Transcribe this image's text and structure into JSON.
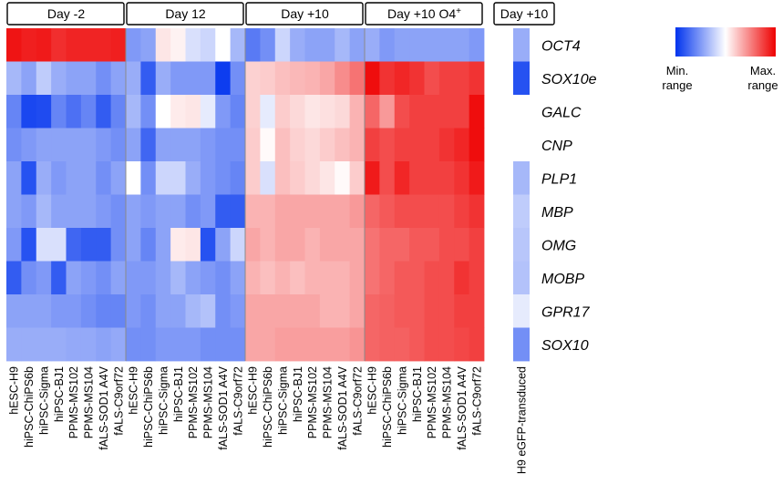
{
  "chart_data": {
    "type": "heatmap",
    "groups": [
      {
        "label": "Day -2",
        "sup": ""
      },
      {
        "label": "Day 12",
        "sup": ""
      },
      {
        "label": "Day +10",
        "sup": ""
      },
      {
        "label": "Day +10 O4",
        "sup": "+"
      }
    ],
    "side_group": {
      "label": "Day +10"
    },
    "columns": [
      "hESC-H9",
      "hiPSC-ChiPS6b",
      "hiPSC-Sigma",
      "hiPSC-BJ1",
      "PPMS-MS102",
      "PPMS-MS104",
      "fALS-SOD1 A4V",
      "fALS-C9orf72"
    ],
    "side_column": "H9 eGFP-transduced",
    "genes": [
      "OCT4",
      "SOX10e",
      "GALC",
      "CNP",
      "PLP1",
      "MBP",
      "OMG",
      "MOBP",
      "GPR17",
      "SOX10"
    ],
    "scale": {
      "min": -1,
      "max": 1,
      "min_label": "Min. range",
      "max_label": "Max. range",
      "colors": [
        "#0033ee",
        "#ffffff",
        "#ee0000"
      ]
    },
    "values": [
      [
        [
          0.92,
          0.88,
          0.9,
          0.82,
          0.86,
          0.86,
          0.86,
          0.88
        ],
        [
          -0.5,
          -0.45,
          0.1,
          0.05,
          -0.15,
          -0.2,
          0.0,
          -0.35
        ],
        [
          -0.65,
          -0.55,
          -0.2,
          -0.4,
          -0.45,
          -0.45,
          -0.35,
          -0.45
        ],
        [
          -0.4,
          -0.5,
          -0.45,
          -0.45,
          -0.45,
          -0.45,
          -0.45,
          -0.5
        ]
      ],
      [
        [
          -0.35,
          -0.45,
          -0.25,
          -0.4,
          -0.45,
          -0.45,
          -0.55,
          -0.45
        ],
        [
          -0.4,
          -0.8,
          -0.4,
          -0.5,
          -0.5,
          -0.5,
          -0.95,
          -0.55
        ],
        [
          0.18,
          0.2,
          0.25,
          0.28,
          0.3,
          0.35,
          0.45,
          0.55
        ],
        [
          0.95,
          0.8,
          0.85,
          0.8,
          0.7,
          0.75,
          0.75,
          0.8
        ]
      ],
      [
        [
          -0.6,
          -0.9,
          -0.88,
          -0.6,
          -0.7,
          -0.6,
          -0.8,
          -0.6
        ],
        [
          -0.35,
          -0.55,
          0.0,
          0.08,
          0.1,
          -0.1,
          -0.5,
          -0.6
        ],
        [
          0.18,
          -0.1,
          0.2,
          0.15,
          0.1,
          0.12,
          0.15,
          0.3
        ],
        [
          0.6,
          0.4,
          0.7,
          0.75,
          0.75,
          0.75,
          0.75,
          0.95
        ]
      ],
      [
        [
          -0.55,
          -0.5,
          -0.45,
          -0.45,
          -0.45,
          -0.45,
          -0.5,
          -0.55
        ],
        [
          -0.45,
          -0.75,
          -0.45,
          -0.45,
          -0.45,
          -0.5,
          -0.55,
          -0.55
        ],
        [
          0.2,
          0.02,
          0.25,
          0.18,
          0.15,
          0.2,
          0.25,
          0.3
        ],
        [
          0.75,
          0.7,
          0.75,
          0.75,
          0.75,
          0.8,
          0.85,
          0.95
        ]
      ],
      [
        [
          -0.45,
          -0.85,
          -0.4,
          -0.5,
          -0.45,
          -0.45,
          -0.55,
          -0.45
        ],
        [
          0.0,
          -0.55,
          -0.2,
          -0.2,
          -0.4,
          -0.5,
          -0.55,
          -0.6
        ],
        [
          0.2,
          -0.15,
          0.25,
          0.2,
          0.15,
          0.1,
          0.02,
          0.2
        ],
        [
          0.9,
          0.7,
          0.85,
          0.75,
          0.75,
          0.75,
          0.8,
          0.9
        ]
      ],
      [
        [
          -0.45,
          -0.5,
          -0.35,
          -0.45,
          -0.45,
          -0.45,
          -0.5,
          -0.55
        ],
        [
          -0.45,
          -0.5,
          -0.45,
          -0.45,
          -0.55,
          -0.5,
          -0.8,
          -0.8
        ],
        [
          0.3,
          0.3,
          0.35,
          0.35,
          0.35,
          0.35,
          0.35,
          0.4
        ],
        [
          0.6,
          0.65,
          0.7,
          0.7,
          0.7,
          0.7,
          0.75,
          0.8
        ]
      ],
      [
        [
          -0.5,
          -0.85,
          -0.15,
          -0.15,
          -0.75,
          -0.8,
          -0.8,
          -0.55
        ],
        [
          -0.45,
          -0.6,
          -0.45,
          0.08,
          0.1,
          -0.85,
          -0.45,
          -0.2
        ],
        [
          0.35,
          0.3,
          0.35,
          0.35,
          0.3,
          0.35,
          0.35,
          0.35
        ],
        [
          0.55,
          0.6,
          0.6,
          0.65,
          0.65,
          0.7,
          0.7,
          0.75
        ]
      ],
      [
        [
          -0.8,
          -0.55,
          -0.5,
          -0.8,
          -0.45,
          -0.5,
          -0.55,
          -0.45
        ],
        [
          -0.5,
          -0.5,
          -0.45,
          -0.35,
          -0.45,
          -0.5,
          -0.55,
          -0.45
        ],
        [
          0.3,
          0.25,
          0.3,
          0.25,
          0.3,
          0.3,
          0.3,
          0.35
        ],
        [
          0.55,
          0.6,
          0.65,
          0.65,
          0.7,
          0.7,
          0.8,
          0.75
        ]
      ],
      [
        [
          -0.45,
          -0.45,
          -0.45,
          -0.5,
          -0.5,
          -0.55,
          -0.6,
          -0.6
        ],
        [
          -0.5,
          -0.55,
          -0.45,
          -0.45,
          -0.35,
          -0.3,
          -0.55,
          -0.5
        ],
        [
          0.35,
          0.35,
          0.35,
          0.35,
          0.35,
          0.3,
          0.3,
          0.35
        ],
        [
          0.6,
          0.62,
          0.65,
          0.65,
          0.7,
          0.7,
          0.75,
          0.75
        ]
      ],
      [
        [
          -0.4,
          -0.4,
          -0.4,
          -0.4,
          -0.42,
          -0.42,
          -0.45,
          -0.42
        ],
        [
          -0.55,
          -0.55,
          -0.5,
          -0.5,
          -0.5,
          -0.55,
          -0.55,
          -0.55
        ],
        [
          0.35,
          0.35,
          0.38,
          0.38,
          0.38,
          0.38,
          0.38,
          0.42
        ],
        [
          0.6,
          0.62,
          0.62,
          0.65,
          0.7,
          0.7,
          0.72,
          0.75
        ]
      ]
    ],
    "side_values": [
      -0.4,
      -0.85,
      0.0,
      0.0,
      -0.35,
      -0.25,
      -0.28,
      -0.3,
      -0.1,
      -0.55
    ]
  }
}
